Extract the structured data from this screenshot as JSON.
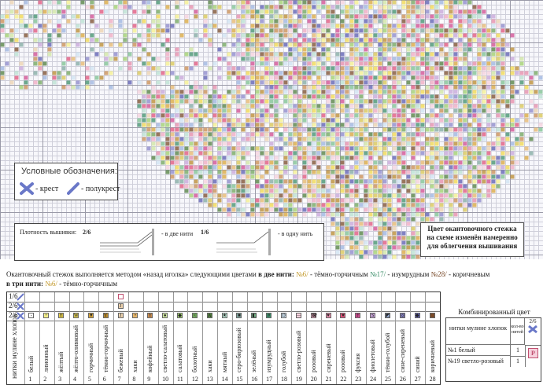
{
  "legend": {
    "title": "Условные обозначения:",
    "cross_label": "- крест",
    "half_cross_label": "- полукрест"
  },
  "density": {
    "label": "Плотность вышивки:",
    "ratio_1": "2/6",
    "two_threads": "- в две нити",
    "ratio_2": "1/6",
    "one_thread": "- в одну нить"
  },
  "note": {
    "line1": "Цвет окантовочного стежка",
    "line2": "на схеме изменён намеренно",
    "line3": "для облегчения вышивания"
  },
  "instructions": {
    "line1_text": "Окантовочный стежок выполняется методом «назад иголка» следующими цветами",
    "line1_bold": "в две нити:",
    "c1_num": "№6",
    "c1_name": "- тёмно-горчичным",
    "c2_num": "№17",
    "c2_name": "- изумрудным",
    "c3_num": "№28",
    "c3_name": "- коричневым",
    "line2_bold": "в три нити:",
    "c4_num": "№6",
    "c4_name": "- тёмно-горчичным"
  },
  "table": {
    "row1": "1/6",
    "row2": "2/6",
    "row3": "2/6",
    "header_label": "нитки мулине хлопок",
    "row_num_label": "№",
    "colors": [
      {
        "num": "1",
        "name": "белый",
        "sym": "-",
        "color": "#ffffff"
      },
      {
        "num": "2",
        "name": "лимонный",
        "sym": "+",
        "color": "#f5f08a"
      },
      {
        "num": "3",
        "name": "жёлтый",
        "sym": "H",
        "color": "#f2d84a"
      },
      {
        "num": "4",
        "name": "жёлто-оливковый",
        "sym": "W",
        "color": "#d8c650"
      },
      {
        "num": "5",
        "name": "горчичный",
        "sym": "▼",
        "color": "#d9a63a"
      },
      {
        "num": "6",
        "name": "тёмно-горчичный",
        "sym": "Y",
        "color": "#b98a2c"
      },
      {
        "num": "7",
        "name": "бежевый",
        "sym": "J",
        "color": "#ecd2ae"
      },
      {
        "num": "8",
        "name": "хаки",
        "sym": "•",
        "color": "#e6b56a"
      },
      {
        "num": "9",
        "name": "кофейный",
        "sym": "Y",
        "color": "#c88b4f"
      },
      {
        "num": "10",
        "name": "светло-салатовый",
        "sym": "●",
        "color": "#cfe6a0"
      },
      {
        "num": "11",
        "name": "салатовый",
        "sym": "◆",
        "color": "#9ecf6a"
      },
      {
        "num": "12",
        "name": "болотный",
        "sym": "<",
        "color": "#6fa45a"
      },
      {
        "num": "13",
        "name": "хаки",
        "sym": "A",
        "color": "#4f7d3c"
      },
      {
        "num": "14",
        "name": "мятный",
        "sym": "★",
        "color": "#b8e0d0"
      },
      {
        "num": "15",
        "name": "серо-бирюзовый",
        "sym": "■",
        "color": "#7fa8a0"
      },
      {
        "num": "16",
        "name": "зелёный",
        "sym": "◧",
        "color": "#7bc08f"
      },
      {
        "num": "17",
        "name": "изумрудный",
        "sym": "#",
        "color": "#3d8f6a"
      },
      {
        "num": "18",
        "name": "голубой",
        "sym": "D",
        "color": "#cfe3f2"
      },
      {
        "num": "19",
        "name": "светло-розовый",
        "sym": "—",
        "color": "#f6d0dc"
      },
      {
        "num": "20",
        "name": "розовый",
        "sym": "☎",
        "color": "#f0a8c0"
      },
      {
        "num": "21",
        "name": "сиреневый",
        "sym": "♥",
        "color": "#e58aa8"
      },
      {
        "num": "22",
        "name": "розовый",
        "sym": "♥",
        "color": "#e0527a"
      },
      {
        "num": "23",
        "name": "фуксия",
        "sym": "F",
        "color": "#d04a8f"
      },
      {
        "num": "24",
        "name": "фиолетовый",
        "sym": "S",
        "color": "#c6a3d8"
      },
      {
        "num": "25",
        "name": "тёмно-голубой",
        "sym": "◩",
        "color": "#9bb3df"
      },
      {
        "num": "26",
        "name": "сине-сиреневый",
        "sym": "◎",
        "color": "#8a86c9"
      },
      {
        "num": "27",
        "name": "синий",
        "sym": "◆",
        "color": "#5a5bb0"
      },
      {
        "num": "28",
        "name": "коричневый",
        "sym": "",
        "color": "#7a4b2a"
      }
    ]
  },
  "combo": {
    "title": "Комбинированный цвет",
    "col1": "нитки мулине хлопок",
    "col2": "кол-во нитей",
    "col3": "2/6",
    "row1_name": "№1 белый",
    "row1_count": "1",
    "row2_name": "№19 светло-розовый",
    "row2_count": "1",
    "symbol": "P"
  }
}
